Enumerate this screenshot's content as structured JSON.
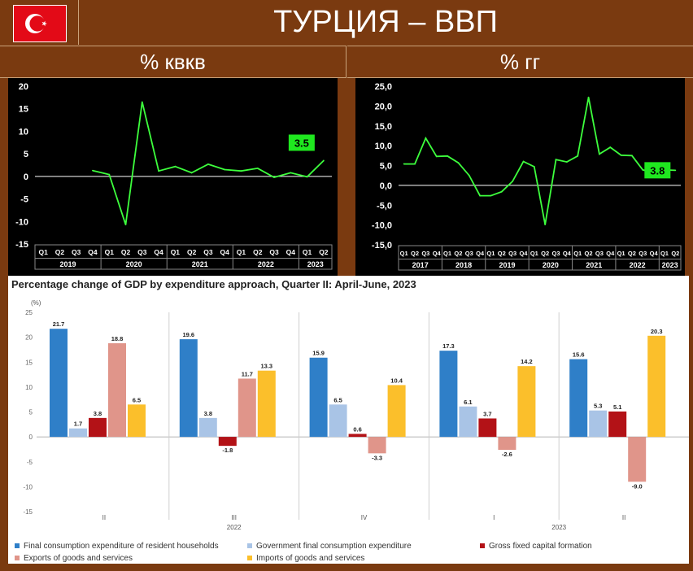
{
  "header": {
    "title": "ТУРЦИЯ – ВВП",
    "flag_icon": "turkey-flag-icon"
  },
  "subtitles": {
    "left": "% квкв",
    "right": "% гг"
  },
  "colors": {
    "line": "#3dff3d",
    "label_bg": "#1fe81f",
    "blue": "#2f7fc8",
    "lightblue": "#a9c4e6",
    "red": "#b31217",
    "salmon": "#e0958a",
    "yellow": "#fbbf2b"
  },
  "chart_data": [
    {
      "type": "line",
      "title": "% квкв",
      "quarters": [
        "Q1",
        "Q2",
        "Q3",
        "Q4",
        "Q1",
        "Q2",
        "Q3",
        "Q4",
        "Q1",
        "Q2",
        "Q3",
        "Q4",
        "Q1",
        "Q2",
        "Q3",
        "Q4",
        "Q1",
        "Q2"
      ],
      "years": [
        {
          "label": "2019",
          "span": 4
        },
        {
          "label": "2020",
          "span": 4
        },
        {
          "label": "2021",
          "span": 4
        },
        {
          "label": "2022",
          "span": 4
        },
        {
          "label": "2023",
          "span": 2
        }
      ],
      "values": [
        null,
        null,
        null,
        1.3,
        0.4,
        -10.7,
        16.5,
        1.2,
        2.2,
        0.8,
        2.7,
        1.5,
        1.2,
        1.8,
        -0.2,
        0.8,
        -0.1,
        3.5
      ],
      "y_ticks": [
        "20",
        "15",
        "10",
        "5",
        "0",
        "-5",
        "-10",
        "-15"
      ],
      "ylim": [
        -15,
        20
      ],
      "last_label": "3.5"
    },
    {
      "type": "line",
      "title": "% гг",
      "quarters": [
        "Q1",
        "Q2",
        "Q3",
        "Q4",
        "Q1",
        "Q2",
        "Q3",
        "Q4",
        "Q1",
        "Q2",
        "Q3",
        "Q4",
        "Q1",
        "Q2",
        "Q3",
        "Q4",
        "Q1",
        "Q2",
        "Q3",
        "Q4",
        "Q1",
        "Q2",
        "Q3",
        "Q4",
        "Q1",
        "Q2"
      ],
      "years": [
        {
          "label": "2017",
          "span": 4
        },
        {
          "label": "2018",
          "span": 4
        },
        {
          "label": "2019",
          "span": 4
        },
        {
          "label": "2020",
          "span": 4
        },
        {
          "label": "2021",
          "span": 4
        },
        {
          "label": "2022",
          "span": 4
        },
        {
          "label": "2023",
          "span": 2
        }
      ],
      "values": [
        5.4,
        5.4,
        11.9,
        7.3,
        7.4,
        5.7,
        2.5,
        -2.6,
        -2.6,
        -1.6,
        1.0,
        6.0,
        4.7,
        -9.9,
        6.5,
        5.9,
        7.4,
        22.2,
        7.9,
        9.6,
        7.6,
        7.5,
        3.9,
        3.3,
        3.9,
        3.8
      ],
      "y_ticks": [
        "25,0",
        "20,0",
        "15,0",
        "10,0",
        "5,0",
        "0,0",
        "-5,0",
        "-10,0",
        "-15,0"
      ],
      "ylim": [
        -15,
        25
      ],
      "last_label": "3.8"
    },
    {
      "type": "bar",
      "title": "Percentage change of GDP by expenditure approach, Quarter II: April-June, 2023",
      "ylabel": "(%)",
      "y_ticks": [
        "25",
        "20",
        "15",
        "10",
        "5",
        "0",
        "-5",
        "-10",
        "-15"
      ],
      "ylim": [
        -15,
        25
      ],
      "categories": [
        "II",
        "III",
        "IV",
        "I",
        "II"
      ],
      "year_labels": [
        "2022",
        "2023"
      ],
      "series": [
        {
          "name": "Final consumption expenditure of resident households",
          "values": [
            21.7,
            19.6,
            15.9,
            17.3,
            15.6
          ],
          "labels": [
            "21.7",
            "19.6",
            "15.9",
            "17.3",
            "15.6"
          ]
        },
        {
          "name": "Government final consumption expenditure",
          "values": [
            1.7,
            3.8,
            6.5,
            6.1,
            5.3
          ],
          "labels": [
            "1.7",
            "3.8",
            "6.5",
            "6.1",
            "5.3"
          ]
        },
        {
          "name": "Gross fixed capital formation",
          "values": [
            3.8,
            -1.8,
            0.6,
            3.7,
            5.1
          ],
          "labels": [
            "3.8",
            "-1.8",
            "0.6",
            "3.7",
            "5.1"
          ]
        },
        {
          "name": "Exports of goods and services",
          "values": [
            18.8,
            11.7,
            -3.3,
            -2.6,
            -9.0
          ],
          "labels": [
            "18.8",
            "11.7",
            "-3.3",
            "-2.6",
            "-9.0"
          ]
        },
        {
          "name": "Imports of goods and services",
          "values": [
            6.5,
            13.3,
            10.4,
            14.2,
            20.3
          ],
          "labels": [
            "6.5",
            "13.3",
            "10.4",
            "14.2",
            "20.3"
          ]
        }
      ]
    }
  ]
}
